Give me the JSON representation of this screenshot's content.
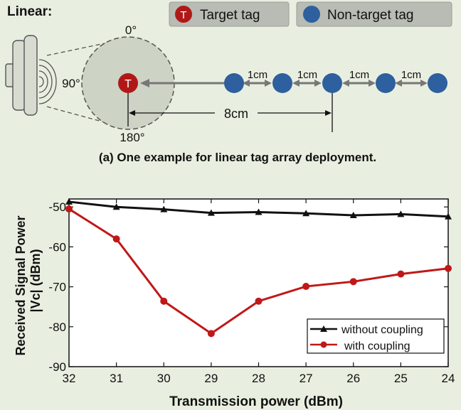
{
  "diagram": {
    "heading": "Linear:",
    "legend": {
      "target": "Target tag",
      "nontarget": "Non-target tag"
    },
    "target_marker": "T",
    "angles": {
      "top": "0°",
      "left": "90°",
      "bottom": "180°"
    },
    "spacing_labels": [
      "1cm",
      "1cm",
      "1cm",
      "1cm"
    ],
    "distance_label": "8cm",
    "caption": "(a) One example for linear tag array deployment.",
    "colors": {
      "target": "#b01818",
      "nontarget": "#2e5f9e",
      "arrow": "#777777"
    }
  },
  "chart_data": {
    "type": "line",
    "xlabel": "Transmission power (dBm)",
    "ylabel_line1": "Received Signal Power",
    "ylabel_line2": "|Vc| (dBm)",
    "x": [
      32,
      31,
      30,
      29,
      28,
      27,
      26,
      25,
      24
    ],
    "x_reversed": true,
    "xlim": [
      32,
      24
    ],
    "ylim": [
      -90,
      -48
    ],
    "yticks": [
      -50,
      -60,
      -70,
      -80,
      -90
    ],
    "grid": false,
    "legend_position": "bottom-right",
    "series": [
      {
        "name": "without coupling",
        "color": "#111111",
        "marker": "triangle",
        "values": [
          -48.7,
          -50.0,
          -50.6,
          -51.5,
          -51.3,
          -51.6,
          -52.1,
          -51.8,
          -52.4
        ]
      },
      {
        "name": "with coupling",
        "color": "#c01818",
        "marker": "circle",
        "values": [
          -50.5,
          -58.0,
          -73.6,
          -81.7,
          -73.6,
          -69.9,
          -68.7,
          -66.8,
          -65.4
        ]
      }
    ]
  }
}
